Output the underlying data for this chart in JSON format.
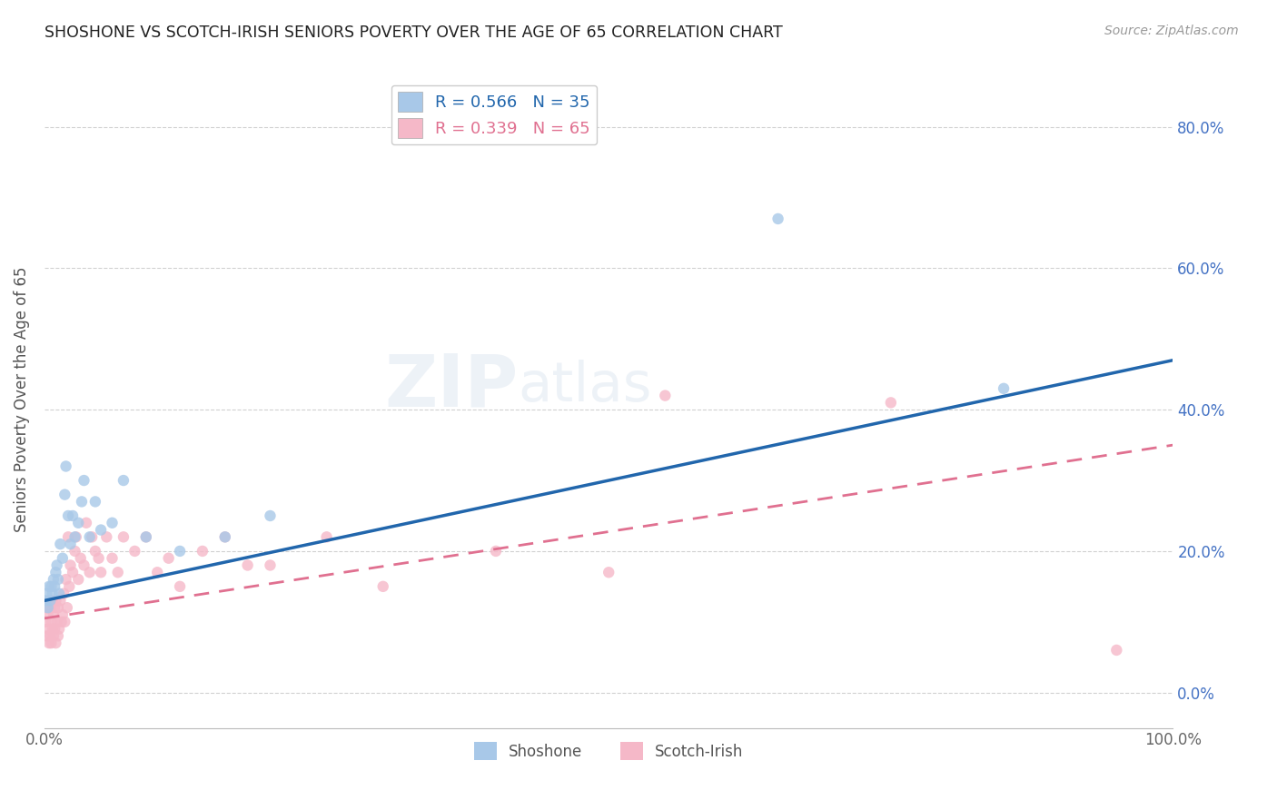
{
  "title": "SHOSHONE VS SCOTCH-IRISH SENIORS POVERTY OVER THE AGE OF 65 CORRELATION CHART",
  "source": "Source: ZipAtlas.com",
  "ylabel": "Seniors Poverty Over the Age of 65",
  "shoshone_color": "#a8c8e8",
  "scotch_irish_color": "#f5b8c8",
  "shoshone_line_color": "#2166ac",
  "scotch_irish_line_color": "#e07090",
  "shoshone_R": 0.566,
  "shoshone_N": 35,
  "scotch_irish_R": 0.339,
  "scotch_irish_N": 65,
  "shoshone_x": [
    0.001,
    0.002,
    0.003,
    0.004,
    0.005,
    0.006,
    0.007,
    0.008,
    0.009,
    0.01,
    0.011,
    0.012,
    0.013,
    0.014,
    0.016,
    0.018,
    0.019,
    0.021,
    0.023,
    0.025,
    0.027,
    0.03,
    0.033,
    0.035,
    0.04,
    0.045,
    0.05,
    0.06,
    0.07,
    0.09,
    0.12,
    0.16,
    0.2,
    0.65,
    0.85
  ],
  "shoshone_y": [
    0.13,
    0.14,
    0.12,
    0.15,
    0.13,
    0.15,
    0.14,
    0.16,
    0.15,
    0.17,
    0.18,
    0.16,
    0.14,
    0.21,
    0.19,
    0.28,
    0.32,
    0.25,
    0.21,
    0.25,
    0.22,
    0.24,
    0.27,
    0.3,
    0.22,
    0.27,
    0.23,
    0.24,
    0.3,
    0.22,
    0.2,
    0.22,
    0.25,
    0.67,
    0.43
  ],
  "scotch_irish_x": [
    0.001,
    0.002,
    0.002,
    0.003,
    0.003,
    0.004,
    0.004,
    0.005,
    0.005,
    0.006,
    0.006,
    0.007,
    0.007,
    0.008,
    0.008,
    0.009,
    0.009,
    0.01,
    0.01,
    0.011,
    0.012,
    0.012,
    0.013,
    0.014,
    0.015,
    0.016,
    0.017,
    0.018,
    0.019,
    0.02,
    0.021,
    0.022,
    0.023,
    0.025,
    0.027,
    0.028,
    0.03,
    0.032,
    0.035,
    0.037,
    0.04,
    0.042,
    0.045,
    0.048,
    0.05,
    0.055,
    0.06,
    0.065,
    0.07,
    0.08,
    0.09,
    0.1,
    0.11,
    0.12,
    0.14,
    0.16,
    0.18,
    0.2,
    0.25,
    0.3,
    0.4,
    0.5,
    0.55,
    0.75,
    0.95
  ],
  "scotch_irish_y": [
    0.1,
    0.08,
    0.12,
    0.09,
    0.11,
    0.07,
    0.13,
    0.08,
    0.12,
    0.07,
    0.1,
    0.09,
    0.13,
    0.08,
    0.11,
    0.09,
    0.12,
    0.07,
    0.13,
    0.1,
    0.08,
    0.12,
    0.09,
    0.13,
    0.1,
    0.11,
    0.14,
    0.1,
    0.16,
    0.12,
    0.22,
    0.15,
    0.18,
    0.17,
    0.2,
    0.22,
    0.16,
    0.19,
    0.18,
    0.24,
    0.17,
    0.22,
    0.2,
    0.19,
    0.17,
    0.22,
    0.19,
    0.17,
    0.22,
    0.2,
    0.22,
    0.17,
    0.19,
    0.15,
    0.2,
    0.22,
    0.18,
    0.18,
    0.22,
    0.15,
    0.2,
    0.17,
    0.42,
    0.41,
    0.06
  ],
  "xlim": [
    0.0,
    1.0
  ],
  "ylim": [
    -0.05,
    0.88
  ],
  "yticks": [
    0.0,
    0.2,
    0.4,
    0.6,
    0.8
  ],
  "ytick_labels_right": [
    "0.0%",
    "20.0%",
    "40.0%",
    "60.0%",
    "80.0%"
  ],
  "xticks": [
    0.0,
    1.0
  ],
  "xtick_labels": [
    "0.0%",
    "100.0%"
  ],
  "watermark_zip": "ZIP",
  "watermark_atlas": "atlas",
  "background_color": "#ffffff",
  "grid_color": "#cccccc",
  "shoshone_line_start_y": 0.13,
  "shoshone_line_end_y": 0.47,
  "scotch_irish_line_start_y": 0.105,
  "scotch_irish_line_end_y": 0.35
}
